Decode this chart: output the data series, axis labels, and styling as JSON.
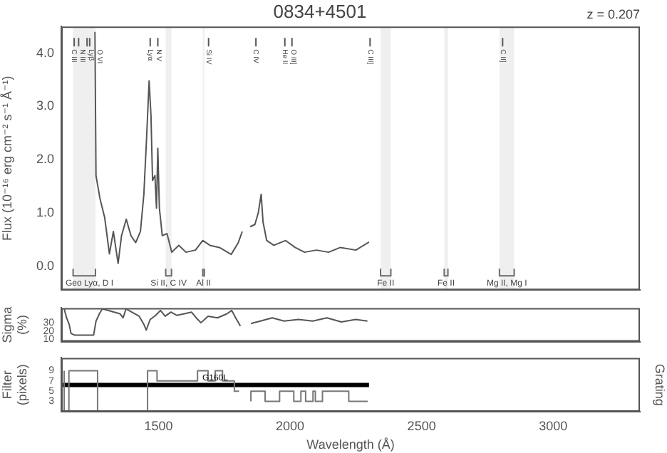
{
  "chart_data": [
    {
      "type": "line",
      "title": "0834+4501",
      "ylabel": "Flux (10⁻¹⁶ erg cm⁻² s⁻¹ Å⁻¹)",
      "xlim": [
        1130,
        3330
      ],
      "ylim": [
        -0.45,
        4.5
      ],
      "yticks": [
        {
          "value": 0,
          "label": "0.0"
        },
        {
          "value": 1,
          "label": "1.0"
        },
        {
          "value": 2,
          "label": "2.0"
        },
        {
          "value": 3,
          "label": "3.0"
        },
        {
          "value": 4,
          "label": "4.0"
        }
      ],
      "tick_labels": "y",
      "grid": false,
      "legend": false,
      "x": [
        1258,
        1262,
        1277,
        1295,
        1313,
        1328,
        1346,
        1359,
        1377,
        1395,
        1413,
        1431,
        1444,
        1455,
        1464,
        1471,
        1477,
        1486,
        1492,
        1497,
        1503,
        1514,
        1532,
        1550,
        1577,
        1604,
        1640,
        1668,
        1695,
        1731,
        1776,
        1803,
        1818,
        1830,
        1848,
        1866,
        1879,
        1890,
        1897,
        1911,
        1938,
        1983,
        2019,
        2055,
        2100,
        2146,
        2191,
        2250,
        2300
      ],
      "series": [
        {
          "color": "#555555",
          "values": [
            4.4,
            1.7,
            1.27,
            0.91,
            0.23,
            0.65,
            0.05,
            0.57,
            0.88,
            0.57,
            0.44,
            0.65,
            1.35,
            2.48,
            3.48,
            2.83,
            1.61,
            1.7,
            1.09,
            2.21,
            1.09,
            0.57,
            0.61,
            0.26,
            0.39,
            0.26,
            0.3,
            0.48,
            0.39,
            0.35,
            0.22,
            0.44,
            0.65,
            null,
            0.74,
            0.78,
            1.0,
            1.35,
            0.83,
            0.48,
            0.39,
            0.48,
            0.35,
            0.26,
            0.3,
            0.26,
            0.35,
            0.3,
            0.45
          ]
        }
      ],
      "annotations": [
        "z = 0.207"
      ],
      "ref_lines": [
        {
          "axis": "x",
          "value": 1179,
          "label": "C III"
        },
        {
          "axis": "x",
          "value": 1196,
          "label": "N III"
        },
        {
          "axis": "x",
          "value": 1228,
          "label": "Lyβ"
        },
        {
          "axis": "x",
          "value": 1238,
          "label": "O VI"
        },
        {
          "axis": "x",
          "value": 1468,
          "label": "Lyα"
        },
        {
          "axis": "x",
          "value": 1497,
          "label": "N V"
        },
        {
          "axis": "x",
          "value": 1690,
          "label": "Si IV"
        },
        {
          "axis": "x",
          "value": 1870,
          "label": "C IV"
        },
        {
          "axis": "x",
          "value": 1980,
          "label": "He II"
        },
        {
          "axis": "x",
          "value": 2007,
          "label": "O III]"
        },
        {
          "axis": "x",
          "value": 2304,
          "label": "C III]"
        },
        {
          "axis": "x",
          "value": 2808,
          "label": "C II]"
        }
      ],
      "bands": [
        {
          "axis": "x",
          "from": 1175,
          "to": 1260,
          "label": "Geo Lyα, D I"
        },
        {
          "axis": "x",
          "from": 1527,
          "to": 1549,
          "label": "Si II, C IV"
        },
        {
          "axis": "x",
          "from": 1668,
          "to": 1674,
          "label": "Al II"
        },
        {
          "axis": "x",
          "from": 2344,
          "to": 2383,
          "label": "Fe II"
        },
        {
          "axis": "x",
          "from": 2586,
          "to": 2600,
          "label": "Fe II"
        },
        {
          "axis": "x",
          "from": 2796,
          "to": 2852,
          "label": "Mg II, Mg I"
        }
      ]
    },
    {
      "type": "line",
      "ylabel": "Sigma (%)",
      "xlim": [
        1130,
        3330
      ],
      "ylim": [
        7,
        48
      ],
      "yticks": [
        10,
        20,
        30
      ],
      "tick_labels": "y",
      "grid": false,
      "legend": false,
      "x": [
        1141,
        1150,
        1160,
        1167,
        1180,
        1253,
        1262,
        1275,
        1286,
        1353,
        1365,
        1376,
        1426,
        1444,
        1453,
        1468,
        1489,
        1507,
        1525,
        1547,
        1570,
        1598,
        1625,
        1643,
        1661,
        1688,
        1724,
        1760,
        1778,
        1793,
        1811,
        1830,
        1851,
        1887,
        1932,
        1977,
        2032,
        2086,
        2140,
        2195,
        2249,
        2294
      ],
      "series": [
        {
          "color": "#555555",
          "values": [
            47,
            36,
            28,
            17,
            15,
            15,
            32,
            41,
            47,
            41,
            36,
            47,
            38,
            28,
            21,
            34,
            39,
            45,
            38,
            43,
            39,
            41,
            43,
            36,
            30,
            38,
            36,
            41,
            45,
            36,
            26,
            null,
            29,
            32,
            36,
            32,
            34,
            32,
            36,
            31,
            34,
            32
          ]
        }
      ]
    },
    {
      "type": "step",
      "xlabel": "Wavelength (Å)",
      "ylabel": "Filter (pixels)",
      "y2label": "Grating",
      "xlim": [
        1130,
        3330
      ],
      "xticks": [
        1500,
        2000,
        2500,
        3000
      ],
      "ylim": [
        1,
        11.5
      ],
      "yticks": [
        3,
        5,
        7,
        9
      ],
      "grid": false,
      "legend": false,
      "series": [
        {
          "color": "#777777",
          "x": [
            1141,
            1159,
            1268,
            1458,
            1494,
            1648,
            1688,
            1715,
            1743,
            1788,
            1806,
            1815,
            1851,
            1905,
            1960,
            2014,
            2041,
            2059,
            2087,
            2096,
            2123,
            2223,
            2250,
            2295
          ],
          "values": [
            9,
            1,
            9,
            1,
            9,
            7,
            9,
            7,
            9,
            7,
            5,
            null,
            3,
            5,
            3,
            5,
            3,
            5,
            3,
            5,
            3,
            5,
            3,
            3
          ]
        },
        {
          "type": "line",
          "name": "G160L",
          "color": "#000000",
          "x": [
            1130,
            2300
          ],
          "values": [
            6.2,
            6.2
          ]
        }
      ]
    }
  ]
}
